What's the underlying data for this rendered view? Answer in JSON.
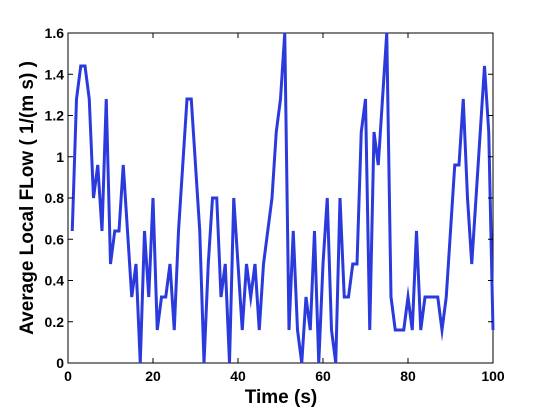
{
  "chart_data": {
    "type": "line",
    "title": "",
    "xlabel": "Time (s)",
    "ylabel": "Average Local FLow ( 1/(m s) )",
    "xlim": [
      0,
      100
    ],
    "ylim": [
      0,
      1.6
    ],
    "xticks": [
      0,
      20,
      40,
      60,
      80,
      100
    ],
    "yticks": [
      0,
      0.2,
      0.4,
      0.6,
      0.8,
      1,
      1.2,
      1.4,
      1.6
    ],
    "grid": false,
    "legend": "none",
    "series": [
      {
        "color": "#2a3adc",
        "x": [
          1,
          2,
          3,
          4,
          5,
          6,
          7,
          8,
          9,
          10,
          11,
          12,
          13,
          14,
          15,
          16,
          17,
          18,
          19,
          20,
          21,
          22,
          23,
          24,
          25,
          26,
          27,
          28,
          29,
          30,
          31,
          32,
          33,
          34,
          35,
          36,
          37,
          38,
          39,
          40,
          41,
          42,
          43,
          44,
          45,
          46,
          47,
          48,
          49,
          50,
          51,
          52,
          53,
          54,
          55,
          56,
          57,
          58,
          59,
          60,
          61,
          62,
          63,
          64,
          65,
          66,
          67,
          68,
          69,
          70,
          71,
          72,
          73,
          74,
          75,
          76,
          77,
          78,
          79,
          80,
          81,
          82,
          83,
          84,
          85,
          86,
          87,
          88,
          89,
          90,
          91,
          92,
          93,
          94,
          95,
          96,
          97,
          98,
          99,
          100
        ],
        "y": [
          0.64,
          1.28,
          1.44,
          1.44,
          1.28,
          0.8,
          0.96,
          0.64,
          1.28,
          0.48,
          0.64,
          0.64,
          0.96,
          0.64,
          0.32,
          0.48,
          0.0,
          0.64,
          0.32,
          0.8,
          0.16,
          0.32,
          0.32,
          0.48,
          0.16,
          0.64,
          0.96,
          1.28,
          1.28,
          0.96,
          0.64,
          0.0,
          0.48,
          0.8,
          0.8,
          0.32,
          0.48,
          0.0,
          0.8,
          0.48,
          0.16,
          0.48,
          0.32,
          0.48,
          0.16,
          0.48,
          0.64,
          0.8,
          1.12,
          1.28,
          1.6,
          0.16,
          0.64,
          0.16,
          0.0,
          0.32,
          0.16,
          0.64,
          0.0,
          0.48,
          0.8,
          0.16,
          0.0,
          0.8,
          0.32,
          0.32,
          0.48,
          0.48,
          1.12,
          1.28,
          0.16,
          1.12,
          0.96,
          1.28,
          1.6,
          0.32,
          0.16,
          0.16,
          0.16,
          0.32,
          0.16,
          0.64,
          0.16,
          0.32,
          0.32,
          0.32,
          0.32,
          0.16,
          0.32,
          0.64,
          0.96,
          0.96,
          1.28,
          0.8,
          0.48,
          0.8,
          1.12,
          1.44,
          1.12,
          0.16
        ]
      }
    ]
  }
}
